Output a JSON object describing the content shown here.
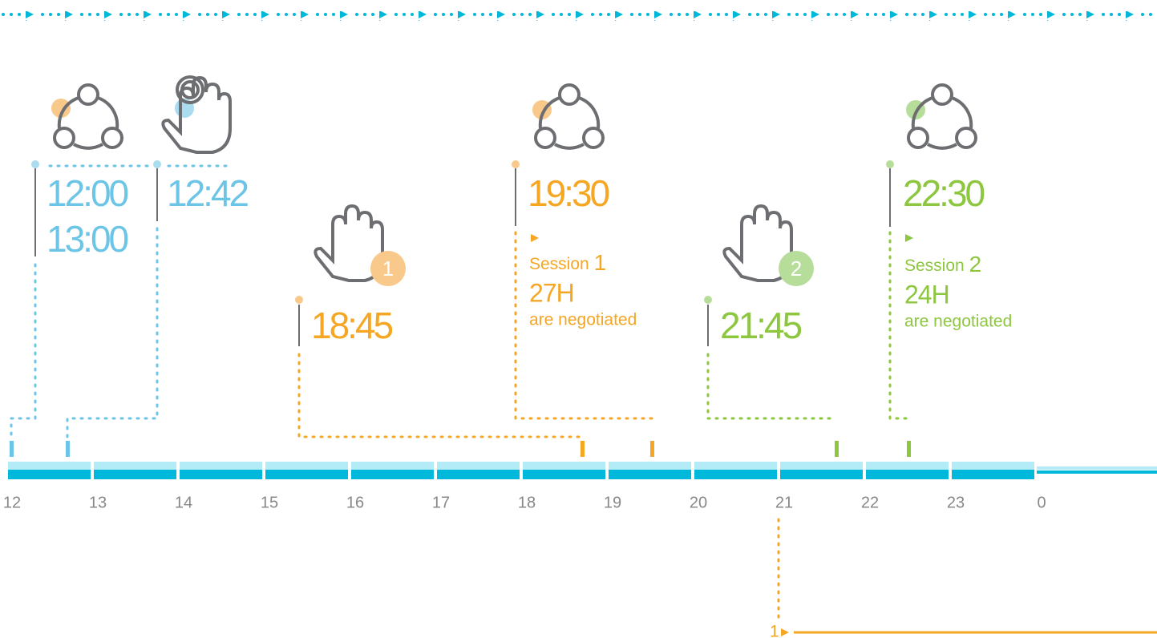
{
  "events": [
    {
      "times": [
        "12:00",
        "13:00"
      ]
    },
    {
      "times": [
        "12:42"
      ]
    },
    {
      "times": [
        "18:45"
      ]
    },
    {
      "times": [
        "19:30"
      ],
      "session": {
        "label": "Session",
        "number": "1",
        "hours": "27H",
        "note": "are negotiated"
      }
    },
    {
      "times": [
        "21:45"
      ]
    },
    {
      "times": [
        "22:30"
      ],
      "session": {
        "label": "Session",
        "number": "2",
        "hours": "24H",
        "note": "are negotiated"
      }
    }
  ],
  "badges": [
    "1",
    "2"
  ],
  "hours": [
    "12",
    "13",
    "14",
    "15",
    "16",
    "17",
    "18",
    "19",
    "20",
    "21",
    "22",
    "23",
    "0"
  ],
  "footer_marker": "1"
}
